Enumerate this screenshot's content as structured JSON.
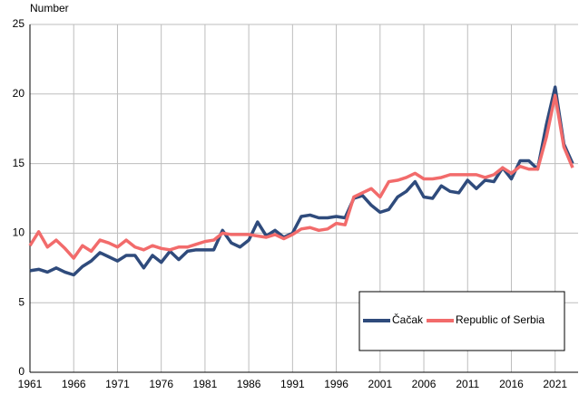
{
  "chart_data": {
    "type": "line",
    "y_label": "Number",
    "x": [
      1961,
      1962,
      1963,
      1964,
      1965,
      1966,
      1967,
      1968,
      1969,
      1970,
      1971,
      1972,
      1973,
      1974,
      1975,
      1976,
      1977,
      1978,
      1979,
      1980,
      1981,
      1982,
      1983,
      1984,
      1985,
      1986,
      1987,
      1988,
      1989,
      1990,
      1991,
      1992,
      1993,
      1994,
      1995,
      1996,
      1997,
      1998,
      1999,
      2000,
      2001,
      2002,
      2003,
      2004,
      2005,
      2006,
      2007,
      2008,
      2009,
      2010,
      2011,
      2012,
      2013,
      2014,
      2015,
      2016,
      2017,
      2018,
      2019,
      2020,
      2021,
      2022,
      2023
    ],
    "series": [
      {
        "name": "Čačak",
        "color": "#2f4b7c",
        "values": [
          7.3,
          7.4,
          7.2,
          7.5,
          7.2,
          7.0,
          7.6,
          8.0,
          8.6,
          8.3,
          8.0,
          8.4,
          8.4,
          7.5,
          8.4,
          7.9,
          8.7,
          8.1,
          8.7,
          8.8,
          8.8,
          8.8,
          10.2,
          9.3,
          9.0,
          9.5,
          10.8,
          9.8,
          10.2,
          9.7,
          10.0,
          11.2,
          11.3,
          11.1,
          11.1,
          11.2,
          11.1,
          12.5,
          12.7,
          12.0,
          11.5,
          11.7,
          12.6,
          13.0,
          13.7,
          12.6,
          12.5,
          13.4,
          13.0,
          12.9,
          13.8,
          13.2,
          13.8,
          13.7,
          14.7,
          13.9,
          15.2,
          15.2,
          14.6,
          17.8,
          20.5,
          16.4,
          15.0
        ]
      },
      {
        "name": "Republic of Serbia",
        "color": "#f26b6b",
        "values": [
          9.1,
          10.1,
          9.0,
          9.5,
          8.9,
          8.2,
          9.1,
          8.7,
          9.5,
          9.3,
          9.0,
          9.5,
          9.0,
          8.8,
          9.1,
          8.9,
          8.8,
          9.0,
          9.0,
          9.2,
          9.4,
          9.5,
          10.0,
          9.9,
          9.9,
          9.9,
          9.8,
          9.7,
          9.9,
          9.6,
          9.9,
          10.3,
          10.4,
          10.2,
          10.3,
          10.7,
          10.6,
          12.6,
          12.9,
          13.2,
          12.6,
          13.7,
          13.8,
          14.0,
          14.3,
          13.9,
          13.9,
          14.0,
          14.2,
          14.2,
          14.2,
          14.2,
          14.0,
          14.2,
          14.7,
          14.3,
          14.8,
          14.6,
          14.6,
          16.9,
          19.9,
          16.2,
          14.7
        ]
      }
    ],
    "xlim": [
      1961,
      2023
    ],
    "ylim": [
      0,
      25
    ],
    "xticks": [
      1961,
      1966,
      1971,
      1976,
      1981,
      1986,
      1991,
      1996,
      2001,
      2006,
      2011,
      2016,
      2021
    ],
    "yticks": [
      0,
      5,
      10,
      15,
      20,
      25
    ],
    "grid": true,
    "legend": "lower right"
  }
}
